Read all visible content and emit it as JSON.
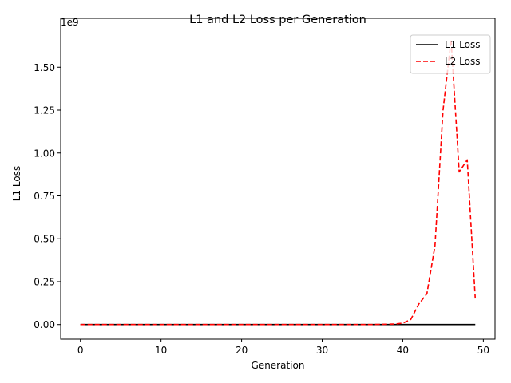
{
  "chart_data": {
    "type": "line",
    "title": "L1 and L2 Loss per Generation",
    "xlabel": "Generation",
    "ylabel": "L1 Loss",
    "y_offset_label": "1e9",
    "xlim": [
      -2.45,
      51.45
    ],
    "ylim": [
      -85000000,
      1785000000
    ],
    "x_ticks": [
      0,
      10,
      20,
      30,
      40,
      50
    ],
    "x_tick_labels": [
      "0",
      "10",
      "20",
      "30",
      "40",
      "50"
    ],
    "y_ticks": [
      0,
      250000000,
      500000000,
      750000000,
      1000000000,
      1250000000,
      1500000000
    ],
    "y_tick_labels": [
      "0.00",
      "0.25",
      "0.50",
      "0.75",
      "1.00",
      "1.25",
      "1.50"
    ],
    "grid": false,
    "legend_position": "upper right",
    "x": [
      0,
      1,
      2,
      3,
      4,
      5,
      6,
      7,
      8,
      9,
      10,
      11,
      12,
      13,
      14,
      15,
      16,
      17,
      18,
      19,
      20,
      21,
      22,
      23,
      24,
      25,
      26,
      27,
      28,
      29,
      30,
      31,
      32,
      33,
      34,
      35,
      36,
      37,
      38,
      39,
      40,
      41,
      42,
      43,
      44,
      45,
      46,
      47,
      48,
      49
    ],
    "series": [
      {
        "name": "L1 Loss",
        "color": "#000000",
        "dash": "solid",
        "values": [
          0,
          0,
          0,
          0,
          0,
          0,
          0,
          0,
          0,
          0,
          0,
          0,
          0,
          0,
          0,
          0,
          0,
          0,
          0,
          0,
          0,
          0,
          0,
          0,
          0,
          0,
          0,
          0,
          0,
          0,
          0,
          0,
          0,
          0,
          0,
          0,
          0,
          0,
          0,
          0,
          0,
          0,
          0,
          0,
          0,
          0,
          0,
          0,
          0,
          0
        ]
      },
      {
        "name": "L2 Loss",
        "color": "#ff0000",
        "dash": "dashed",
        "values": [
          0,
          0,
          0,
          0,
          0,
          0,
          0,
          0,
          0,
          0,
          0,
          0,
          0,
          0,
          0,
          0,
          0,
          0,
          0,
          0,
          0,
          0,
          0,
          0,
          0,
          0,
          0,
          0,
          0,
          0,
          0,
          0,
          0,
          0,
          0,
          0,
          0,
          1000000,
          2000000,
          3000000,
          8000000,
          30000000,
          120000000,
          180000000,
          460000000,
          1250000000,
          1660000000,
          890000000,
          960000000,
          150000000
        ]
      }
    ]
  }
}
